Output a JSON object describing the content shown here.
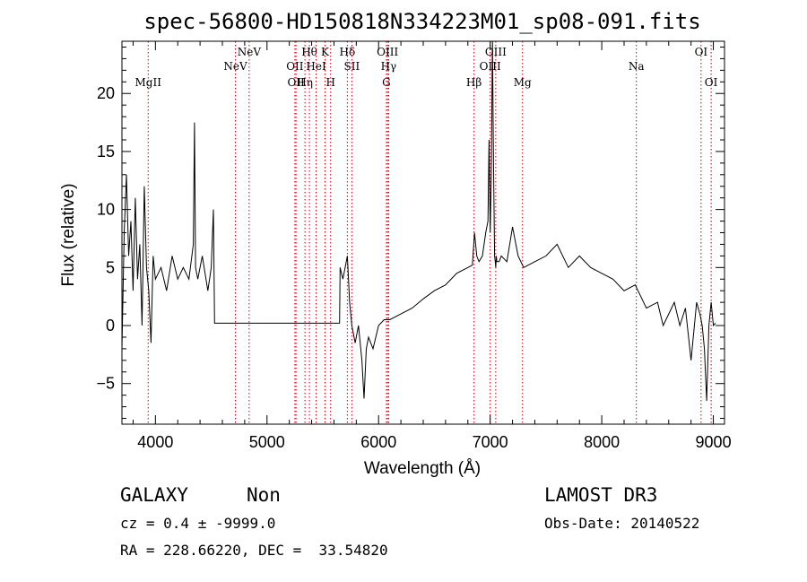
{
  "chart_data": {
    "type": "line",
    "title": "spec-56800-HD150818N334223M01_sp08-091.fits",
    "xlabel": "Wavelength (Å)",
    "ylabel": "Flux (relative)",
    "xlim": [
      3700,
      9100
    ],
    "ylim": [
      -8.5,
      24.5
    ],
    "xticks": [
      4000,
      5000,
      6000,
      7000,
      8000,
      9000
    ],
    "yticks": [
      -5,
      0,
      5,
      10,
      15,
      20
    ],
    "series": [
      {
        "name": "spectrum",
        "x": [
          3700,
          3720,
          3740,
          3760,
          3780,
          3800,
          3820,
          3840,
          3860,
          3880,
          3900,
          3920,
          3940,
          3960,
          3980,
          4000,
          4050,
          4100,
          4150,
          4200,
          4250,
          4300,
          4340,
          4350,
          4360,
          4380,
          4420,
          4470,
          4500,
          4520,
          4530,
          4530,
          5000,
          5300,
          5650,
          5655,
          5680,
          5720,
          5740,
          5760,
          5790,
          5820,
          5850,
          5870,
          5890,
          5910,
          5950,
          6000,
          6050,
          6100,
          6200,
          6300,
          6400,
          6500,
          6600,
          6700,
          6800,
          6840,
          6860,
          6880,
          6900,
          6930,
          6960,
          6980,
          6990,
          7000,
          7010,
          7020,
          7030,
          7040,
          7045,
          7050,
          7055,
          7060,
          7080,
          7100,
          7150,
          7200,
          7250,
          7300,
          7400,
          7500,
          7600,
          7700,
          7800,
          7900,
          8000,
          8100,
          8200,
          8300,
          8400,
          8500,
          8550,
          8600,
          8650,
          8700,
          8750,
          8800,
          8850,
          8880,
          8900,
          8920,
          8940,
          8960,
          8980,
          9000,
          9020
        ],
        "y": [
          -2,
          8,
          13,
          6,
          9,
          3,
          11,
          4,
          7,
          0,
          12,
          5,
          3,
          -1.5,
          6,
          4,
          5,
          3,
          6,
          4,
          5,
          4,
          7,
          17.5,
          5,
          4,
          6,
          3,
          5,
          10,
          0.2,
          0.2,
          0.2,
          0.2,
          0.2,
          5,
          4,
          6,
          2,
          0,
          -1.5,
          0,
          -3,
          -6.3,
          -2,
          -1,
          -2,
          0,
          0.5,
          0.5,
          1,
          1.5,
          2.3,
          3,
          3.5,
          4.5,
          5,
          5.2,
          8,
          6,
          5.5,
          6,
          8,
          9,
          16,
          8,
          13,
          25,
          14,
          6,
          5.5,
          5,
          6,
          5.5,
          5.5,
          6,
          5.5,
          8.5,
          6,
          5,
          5.5,
          6,
          7,
          5,
          6,
          5,
          4.5,
          4,
          3,
          3.5,
          1.5,
          2,
          0,
          1,
          2,
          0,
          1.5,
          -3,
          2,
          1,
          0,
          -2,
          -6.5,
          0,
          2,
          0,
          0.2
        ]
      }
    ],
    "line_markers": [
      {
        "label": "MgII",
        "x": 3935,
        "row": 3
      },
      {
        "label": "NeV",
        "x": 4717,
        "row": 2
      },
      {
        "label": "NeV",
        "x": 4840,
        "row": 1
      },
      {
        "label": "OII",
        "x": 5250,
        "row": 2
      },
      {
        "label": "OII",
        "x": 5260,
        "row": 3
      },
      {
        "label": "Hη",
        "x": 5340,
        "row": 3
      },
      {
        "label": "Hθ",
        "x": 5380,
        "row": 1
      },
      {
        "label": "HeI",
        "x": 5440,
        "row": 2
      },
      {
        "label": "K",
        "x": 5520,
        "row": 1
      },
      {
        "label": "H",
        "x": 5570,
        "row": 3
      },
      {
        "label": "Hδ",
        "x": 5720,
        "row": 1
      },
      {
        "label": "SII",
        "x": 5760,
        "row": 2
      },
      {
        "label": "OIII",
        "x": 6080,
        "row": 1
      },
      {
        "label": "Hγ",
        "x": 6090,
        "row": 2
      },
      {
        "label": "G",
        "x": 6070,
        "row": 3
      },
      {
        "label": "Hβ",
        "x": 6855,
        "row": 3
      },
      {
        "label": "OIII",
        "x": 7000,
        "row": 2
      },
      {
        "label": "OIII",
        "x": 7050,
        "row": 1
      },
      {
        "label": "Mg",
        "x": 7290,
        "row": 3
      },
      {
        "label": "Na",
        "x": 8310,
        "row": 2
      },
      {
        "label": "OI",
        "x": 8890,
        "row": 1
      },
      {
        "label": "OI",
        "x": 8980,
        "row": 3
      }
    ],
    "colors": {
      "spectrum": "#000000",
      "marker": "#cc0000",
      "axis": "#000000"
    }
  },
  "info": {
    "object_class": "GALAXY",
    "subclass": "Non",
    "survey": "LAMOST DR3",
    "cz_text": "cz = 0.4 ± -9999.0",
    "obs_date": "Obs-Date: 20140522",
    "radec": "RA = 228.66220, DEC =  33.54820"
  }
}
